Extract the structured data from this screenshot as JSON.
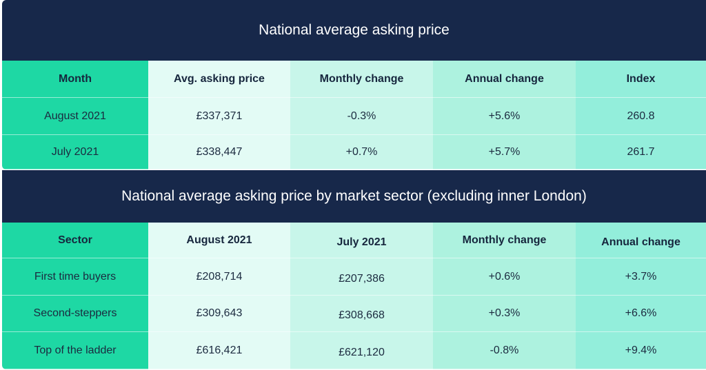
{
  "table1": {
    "title": "National average asking price",
    "headers": [
      "Month",
      "Avg. asking price",
      "Monthly change",
      "Annual change",
      "Index"
    ],
    "rows": [
      [
        "August 2021",
        "£337,371",
        "-0.3%",
        "+5.6%",
        "260.8"
      ],
      [
        "July 2021",
        "£338,447",
        "+0.7%",
        "+5.7%",
        "261.7"
      ]
    ]
  },
  "table2": {
    "title": "National average asking price by market sector (excluding inner London)",
    "headers": [
      "Sector",
      "August 2021",
      "July 2021",
      "Monthly change",
      "Annual change"
    ],
    "rows": [
      [
        "First time buyers",
        "£208,714",
        "£207,386",
        "+0.6%",
        "+3.7%"
      ],
      [
        "Second-steppers",
        "£309,643",
        "£308,668",
        "+0.3%",
        "+6.6%"
      ],
      [
        "Top of the ladder",
        "£616,421",
        "£621,120",
        "-0.8%",
        "+9.4%"
      ]
    ]
  },
  "colors": {
    "banner": "#17284a",
    "col1": "#1ed8a4",
    "col2": "#e3fbf5",
    "col3": "#c8f6ea",
    "col4": "#adf2df",
    "col5": "#93eedb"
  }
}
